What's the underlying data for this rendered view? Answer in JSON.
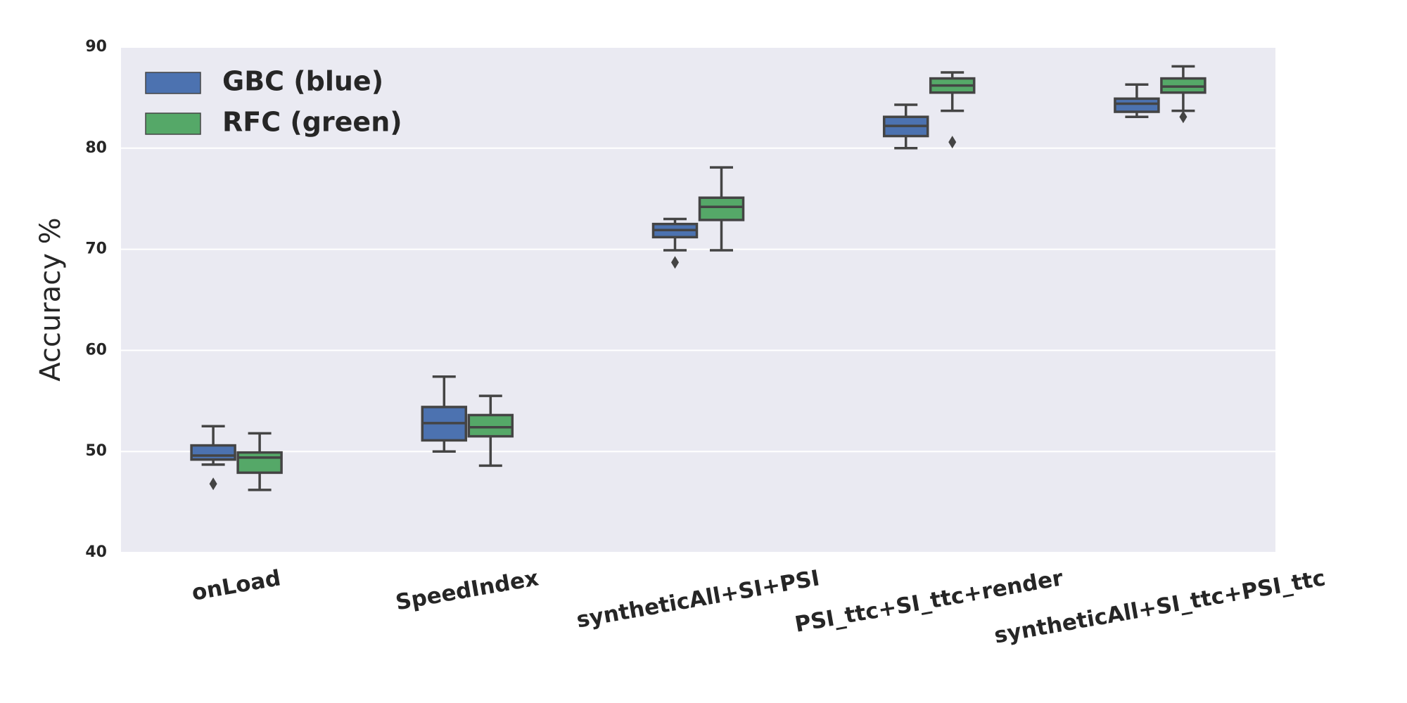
{
  "chart_data": {
    "type": "box",
    "y_label": "Accuracy %",
    "categories": [
      "onLoad",
      "SpeedIndex",
      "syntheticAll+SI+PSI",
      "PSI_ttc+SI_ttc+render",
      "syntheticAll+SI_ttc+PSI_ttc"
    ],
    "series": [
      {
        "name": "GBC (blue)",
        "color": "#4c72b0",
        "values": [
          {
            "whisker_low": 48.7,
            "q1": 49.2,
            "median": 49.6,
            "q3": 50.6,
            "whisker_high": 52.5,
            "outliers": [
              46.8
            ]
          },
          {
            "whisker_low": 50.0,
            "q1": 51.1,
            "median": 52.8,
            "q3": 54.4,
            "whisker_high": 57.4,
            "outliers": []
          },
          {
            "whisker_low": 69.9,
            "q1": 71.2,
            "median": 71.9,
            "q3": 72.5,
            "whisker_high": 73.0,
            "outliers": [
              68.7
            ]
          },
          {
            "whisker_low": 80.0,
            "q1": 81.2,
            "median": 82.2,
            "q3": 83.1,
            "whisker_high": 84.3,
            "outliers": []
          },
          {
            "whisker_low": 83.1,
            "q1": 83.6,
            "median": 84.4,
            "q3": 84.9,
            "whisker_high": 86.3,
            "outliers": []
          }
        ]
      },
      {
        "name": "RFC (green)",
        "color": "#55a868",
        "values": [
          {
            "whisker_low": 46.2,
            "q1": 47.9,
            "median": 49.4,
            "q3": 49.9,
            "whisker_high": 51.8,
            "outliers": []
          },
          {
            "whisker_low": 48.6,
            "q1": 51.5,
            "median": 52.4,
            "q3": 53.6,
            "whisker_high": 55.5,
            "outliers": []
          },
          {
            "whisker_low": 69.9,
            "q1": 72.9,
            "median": 74.2,
            "q3": 75.1,
            "whisker_high": 78.1,
            "outliers": []
          },
          {
            "whisker_low": 83.7,
            "q1": 85.5,
            "median": 86.2,
            "q3": 86.9,
            "whisker_high": 87.5,
            "outliers": [
              80.6
            ]
          },
          {
            "whisker_low": 83.7,
            "q1": 85.5,
            "median": 86.1,
            "q3": 86.9,
            "whisker_high": 88.1,
            "outliers": [
              83.1
            ]
          }
        ]
      }
    ],
    "ylim": [
      40,
      90
    ],
    "yticks": [
      40,
      50,
      60,
      70,
      80,
      90
    ],
    "grid": true,
    "legend": "upper left"
  }
}
